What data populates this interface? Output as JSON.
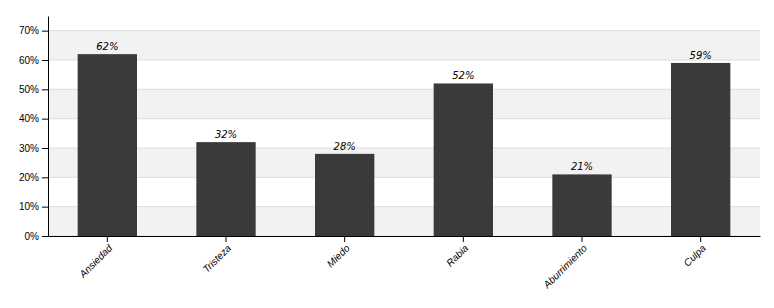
{
  "chart_data": {
    "type": "bar",
    "categories": [
      "Ansiedad",
      "Tristeza",
      "Miedo",
      "Rabia",
      "Aburrimiento",
      "Culpa"
    ],
    "values": [
      62,
      32,
      28,
      52,
      21,
      59
    ],
    "value_labels": [
      "62%",
      "32%",
      "28%",
      "52%",
      "21%",
      "59%"
    ],
    "data_labels": true,
    "color": "#3a3a3a",
    "ylim": [
      0,
      75
    ],
    "yticks": [
      {
        "value": 0,
        "label": "0%"
      },
      {
        "value": 10,
        "label": "10%"
      },
      {
        "value": 20,
        "label": "20%"
      },
      {
        "value": 30,
        "label": "30%"
      },
      {
        "value": 40,
        "label": "40%"
      },
      {
        "value": 50,
        "label": "50%"
      },
      {
        "value": 60,
        "label": "60%"
      },
      {
        "value": 70,
        "label": "70%"
      }
    ],
    "grid": true
  }
}
